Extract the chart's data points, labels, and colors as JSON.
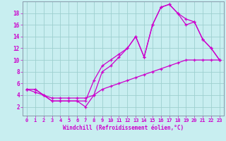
{
  "xlabel": "Windchill (Refroidissement éolien,°C)",
  "bg_color": "#c8eef0",
  "grid_color": "#9dcfcf",
  "line_color": "#cc00cc",
  "spine_color": "#8899aa",
  "xlim": [
    -0.5,
    23.5
  ],
  "ylim": [
    0.5,
    20
  ],
  "xticks": [
    0,
    1,
    2,
    3,
    4,
    5,
    6,
    7,
    8,
    9,
    10,
    11,
    12,
    13,
    14,
    15,
    16,
    17,
    18,
    19,
    20,
    21,
    22,
    23
  ],
  "yticks": [
    2,
    4,
    6,
    8,
    10,
    12,
    14,
    16,
    18
  ],
  "line1_x": [
    0,
    1,
    2,
    3,
    4,
    5,
    6,
    7,
    8,
    9,
    10,
    11,
    12,
    13,
    14,
    15,
    16,
    17,
    18,
    19,
    20,
    21,
    22,
    23
  ],
  "line1_y": [
    5,
    5,
    4,
    3,
    3,
    3,
    3,
    2,
    4,
    8,
    9,
    10.5,
    12,
    14,
    10.5,
    16,
    19,
    19.5,
    18,
    17,
    16.5,
    13.5,
    12,
    10
  ],
  "line2_x": [
    0,
    1,
    2,
    3,
    4,
    5,
    6,
    7,
    8,
    9,
    10,
    11,
    12,
    13,
    14,
    15,
    16,
    17,
    18,
    19,
    20,
    21,
    22,
    23
  ],
  "line2_y": [
    5,
    5,
    4,
    3,
    3,
    3,
    3,
    3,
    6.5,
    9,
    10,
    11,
    12,
    14,
    10.5,
    16,
    19,
    19.5,
    18,
    16,
    16.5,
    13.5,
    12,
    10
  ],
  "line3_x": [
    0,
    1,
    2,
    3,
    4,
    5,
    6,
    7,
    8,
    9,
    10,
    11,
    12,
    13,
    14,
    15,
    16,
    17,
    18,
    19,
    20,
    21,
    22,
    23
  ],
  "line3_y": [
    5,
    4.5,
    4,
    3.5,
    3.5,
    3.5,
    3.5,
    3.5,
    4,
    5,
    5.5,
    6,
    6.5,
    7,
    7.5,
    8,
    8.5,
    9,
    9.5,
    10,
    10,
    10,
    10,
    10
  ],
  "tick_fontsize": 5.5,
  "xlabel_fontsize": 5.5
}
